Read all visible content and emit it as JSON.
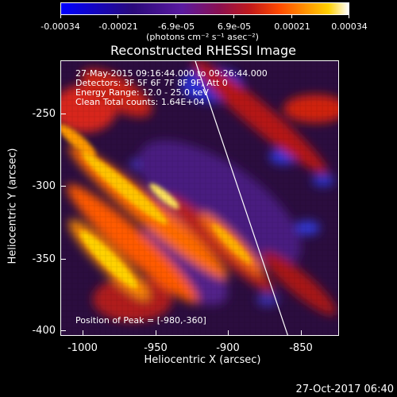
{
  "colorbar": {
    "tick_labels": [
      "-0.00034",
      "-0.00021",
      "-6.9e-05",
      "6.9e-05",
      "0.00021",
      "0.00034"
    ],
    "units": "(photons cm⁻² s⁻¹ asec⁻²)"
  },
  "title": "Reconstructed RHESSI Image",
  "annotations": {
    "time": "27-May-2015 09:16:44.000 to 09:26:44.000",
    "detectors": "Detectors: 3F 5F 6F 7F 8F 9F, Att 0",
    "energy": "Energy Range: 12.0 - 25.0 keV",
    "algorithm": "Clean     Total counts: 1.64E+04",
    "peak": "Position of Peak = [-980,-360]"
  },
  "axes": {
    "xlabel": "Heliocentric X (arcsec)",
    "ylabel": "Heliocentric Y (arcsec)",
    "xticks": [
      "-1000",
      "-950",
      "-900",
      "-850"
    ],
    "yticks": [
      "-250",
      "-300",
      "-350",
      "-400"
    ]
  },
  "footer_date": "27-Oct-2017 06:40",
  "colors": {
    "background": "#000000",
    "text": "#ffffff",
    "limb_line": "#ffffff"
  }
}
